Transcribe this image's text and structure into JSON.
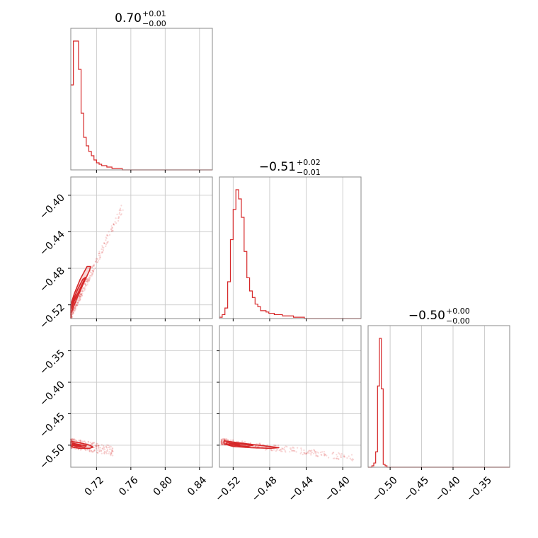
{
  "colors": {
    "series": "#d62728",
    "grid": "#c8c8c8",
    "frame": "#888888"
  },
  "chart_data": {
    "type": "corner",
    "grid": true,
    "parameters": [
      {
        "title_median": "0.70",
        "title_plus": "+0.01",
        "title_minus": "−0.00",
        "range": [
          0.69,
          0.855
        ]
      },
      {
        "title_median": "−0.51",
        "title_plus": "+0.02",
        "title_minus": "−0.01",
        "range": [
          -0.535,
          -0.38
        ]
      },
      {
        "title_median": "−0.50",
        "title_plus": "+0.00",
        "title_minus": "−0.00",
        "range": [
          -0.535,
          -0.31
        ]
      }
    ],
    "tick_values": {
      "p0": [
        0.72,
        0.76,
        0.8,
        0.84
      ],
      "p1": [
        -0.52,
        -0.48,
        -0.44,
        -0.4
      ],
      "p2": [
        -0.5,
        -0.45,
        -0.4,
        -0.35
      ]
    },
    "tick_labels": {
      "p0": [
        "0.72",
        "0.76",
        "0.80",
        "0.84"
      ],
      "p1": [
        "−0.52",
        "−0.48",
        "−0.44",
        "−0.40"
      ],
      "p2": [
        "−0.50",
        "−0.45",
        "−0.40",
        "−0.35"
      ]
    },
    "histograms": {
      "p0": {
        "bin_start": 0.69,
        "bin_width": 0.003,
        "counts": [
          60,
          91,
          91,
          71,
          40,
          23,
          17,
          13,
          10,
          7,
          5,
          4,
          3,
          3,
          2,
          2,
          1,
          1,
          1,
          1,
          0,
          0,
          0,
          0,
          0,
          0,
          0,
          0,
          0,
          0,
          0,
          0,
          0,
          0,
          0,
          0,
          0,
          0,
          0,
          0,
          0,
          0,
          0,
          0,
          0,
          0,
          0,
          0,
          0,
          0,
          0,
          0,
          0,
          0,
          0
        ]
      },
      "p1": {
        "bin_start": -0.535,
        "bin_width": 0.003,
        "counts": [
          1,
          3,
          8,
          28,
          60,
          83,
          98,
          91,
          77,
          51,
          31,
          21,
          16,
          11,
          9,
          6,
          6,
          5,
          4,
          4,
          3,
          3,
          3,
          2,
          2,
          2,
          2,
          1,
          1,
          1,
          1,
          0,
          0,
          0,
          0,
          0,
          0,
          0,
          0,
          0,
          0,
          0,
          0,
          0,
          0,
          0,
          0,
          0,
          0,
          0,
          0,
          0
        ]
      },
      "p2": {
        "bin_start": -0.535,
        "bin_width": 0.003,
        "counts": [
          0,
          0,
          1,
          3,
          11,
          58,
          92,
          56,
          2,
          1,
          0,
          0,
          0,
          0,
          0,
          0,
          0,
          0,
          0,
          0,
          0,
          0,
          0,
          0,
          0,
          0,
          0,
          0,
          0,
          0,
          0,
          0,
          0,
          0,
          0,
          0,
          0,
          0,
          0,
          0,
          0,
          0,
          0,
          0,
          0,
          0,
          0,
          0,
          0,
          0,
          0,
          0,
          0,
          0,
          0,
          0,
          0,
          0,
          0,
          0,
          0,
          0,
          0,
          0,
          0,
          0,
          0,
          0,
          0,
          0,
          0,
          0,
          0,
          0,
          0
        ]
      }
    },
    "scatter": {
      "p0_p1": {
        "contours": [
          [
            [
              0.69,
              -0.531
            ],
            [
              0.692,
              -0.525
            ],
            [
              0.698,
              -0.511
            ],
            [
              0.705,
              -0.496
            ],
            [
              0.712,
              -0.482
            ],
            [
              0.713,
              -0.478
            ],
            [
              0.709,
              -0.478
            ],
            [
              0.701,
              -0.492
            ],
            [
              0.694,
              -0.508
            ],
            [
              0.69,
              -0.52
            ]
          ],
          [
            [
              0.691,
              -0.524
            ],
            [
              0.694,
              -0.516
            ],
            [
              0.699,
              -0.506
            ],
            [
              0.705,
              -0.494
            ],
            [
              0.707,
              -0.49
            ],
            [
              0.704,
              -0.492
            ],
            [
              0.698,
              -0.503
            ],
            [
              0.693,
              -0.514
            ],
            [
              0.691,
              -0.52
            ]
          ],
          [
            [
              0.692,
              -0.52
            ],
            [
              0.694,
              -0.514
            ],
            [
              0.697,
              -0.509
            ],
            [
              0.696,
              -0.512
            ],
            [
              0.693,
              -0.518
            ]
          ]
        ]
      },
      "p0_p2": {
        "contours": [
          [
            [
              0.69,
              -0.494
            ],
            [
              0.7,
              -0.496
            ],
            [
              0.712,
              -0.5
            ],
            [
              0.716,
              -0.503
            ],
            [
              0.712,
              -0.505
            ],
            [
              0.7,
              -0.505
            ],
            [
              0.692,
              -0.503
            ],
            [
              0.69,
              -0.498
            ]
          ],
          [
            [
              0.692,
              -0.497
            ],
            [
              0.7,
              -0.499
            ],
            [
              0.708,
              -0.501
            ],
            [
              0.706,
              -0.503
            ],
            [
              0.697,
              -0.502
            ],
            [
              0.692,
              -0.5
            ]
          ],
          [
            [
              0.693,
              -0.499
            ],
            [
              0.698,
              -0.5
            ],
            [
              0.702,
              -0.501
            ],
            [
              0.697,
              -0.501
            ]
          ]
        ]
      },
      "p1_p2": {
        "contours": [
          [
            [
              -0.53,
              -0.493
            ],
            [
              -0.515,
              -0.496
            ],
            [
              -0.498,
              -0.499
            ],
            [
              -0.48,
              -0.502
            ],
            [
              -0.47,
              -0.504
            ],
            [
              -0.48,
              -0.505
            ],
            [
              -0.5,
              -0.504
            ],
            [
              -0.52,
              -0.502
            ],
            [
              -0.53,
              -0.498
            ]
          ],
          [
            [
              -0.527,
              -0.496
            ],
            [
              -0.512,
              -0.498
            ],
            [
              -0.498,
              -0.5
            ],
            [
              -0.505,
              -0.502
            ],
            [
              -0.52,
              -0.5
            ],
            [
              -0.528,
              -0.498
            ]
          ],
          [
            [
              -0.524,
              -0.497
            ],
            [
              -0.513,
              -0.499
            ],
            [
              -0.517,
              -0.5
            ],
            [
              -0.524,
              -0.499
            ]
          ]
        ]
      }
    }
  }
}
